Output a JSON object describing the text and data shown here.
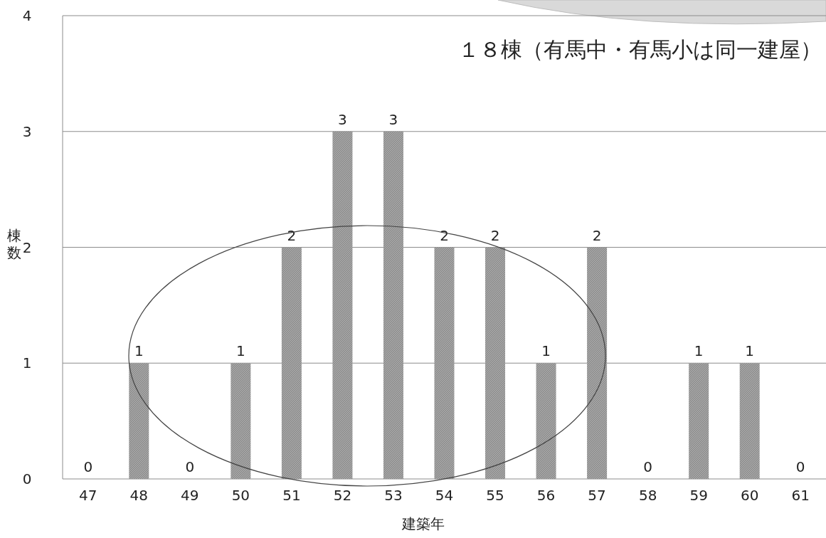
{
  "chart_data": {
    "type": "bar",
    "title": "１８棟（有馬中・有馬小は同一建屋）",
    "xlabel": "建築年",
    "ylabel": "棟数",
    "categories": [
      "47",
      "48",
      "49",
      "50",
      "51",
      "52",
      "53",
      "54",
      "55",
      "56",
      "57",
      "58",
      "59",
      "60",
      "61"
    ],
    "values": [
      0,
      1,
      0,
      1,
      2,
      3,
      3,
      2,
      2,
      1,
      2,
      0,
      1,
      1,
      0
    ],
    "color": "#a6a6a6",
    "ylim": [
      0,
      4
    ],
    "yticks": [
      0,
      1,
      2,
      3,
      4
    ],
    "grid": "y",
    "data_labels": true
  }
}
